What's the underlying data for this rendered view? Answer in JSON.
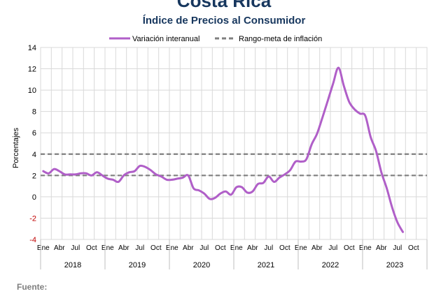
{
  "header": {
    "title": "Costa Rica",
    "subtitle": "Índice de Precios al Consumidor"
  },
  "footer": {
    "source_label": "Fuente:"
  },
  "colors": {
    "series": "#b05fc8",
    "target": "#7f7f7f",
    "grid": "#d9d9d9",
    "negative_tick": "#c00000"
  },
  "chart_data": {
    "type": "line",
    "title": "Índice de Precios al Consumidor",
    "ylabel": "Porcentajes",
    "xlabel": "",
    "ylim": [
      -4,
      14
    ],
    "yticks": [
      -4,
      -2,
      0,
      2,
      4,
      6,
      8,
      10,
      12,
      14
    ],
    "grid": true,
    "legend_position": "top",
    "month_labels": [
      "Ene",
      "Abr",
      "Jul",
      "Oct"
    ],
    "years": [
      "2018",
      "2019",
      "2020",
      "2021",
      "2022",
      "2023"
    ],
    "x_start": "2018-01",
    "series": [
      {
        "name": "Variación interanual",
        "style": "solid",
        "color": "#b05fc8",
        "values": [
          2.4,
          2.2,
          2.6,
          2.4,
          2.1,
          2.1,
          2.1,
          2.2,
          2.2,
          2.0,
          2.3,
          2.0,
          1.7,
          1.6,
          1.4,
          2.0,
          2.3,
          2.4,
          2.9,
          2.8,
          2.5,
          2.1,
          1.9,
          1.6,
          1.6,
          1.7,
          1.8,
          2.0,
          0.8,
          0.6,
          0.3,
          -0.2,
          -0.1,
          0.3,
          0.5,
          0.2,
          0.9,
          0.9,
          0.4,
          0.5,
          1.2,
          1.3,
          1.9,
          1.4,
          1.8,
          2.1,
          2.5,
          3.3,
          3.3,
          3.5,
          4.9,
          5.9,
          7.4,
          9.0,
          10.6,
          12.1,
          10.4,
          8.9,
          8.2,
          7.8,
          7.6,
          5.6,
          4.3,
          2.3,
          0.8,
          -1.0,
          -2.4,
          -3.3
        ]
      },
      {
        "name": "Rango-meta de inflación",
        "style": "dashed",
        "color": "#7f7f7f",
        "bands": [
          2,
          4
        ]
      }
    ]
  }
}
